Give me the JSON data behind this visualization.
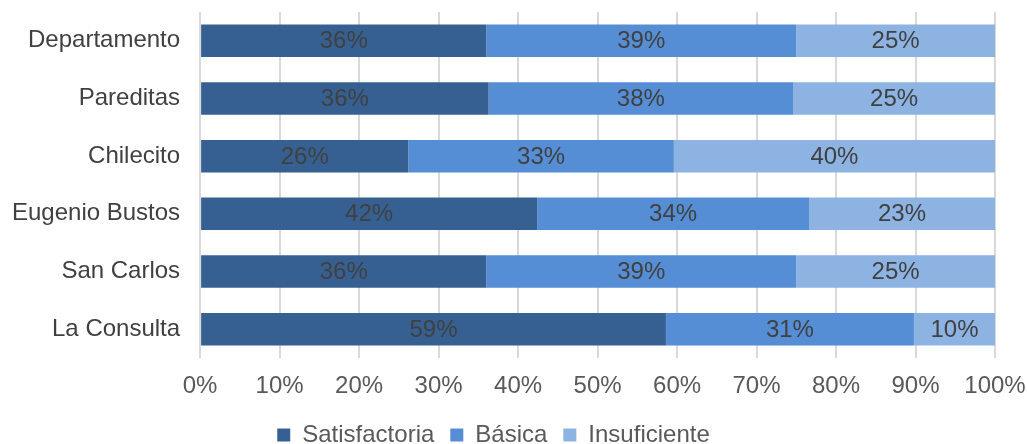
{
  "chart_data": {
    "type": "bar",
    "orientation": "horizontal",
    "stacked": true,
    "categories": [
      "Departamento",
      "Pareditas",
      "Chilecito",
      "Eugenio Bustos",
      "San Carlos",
      "La Consulta"
    ],
    "series": [
      {
        "name": "Satisfactoria",
        "color": "#366092",
        "values": [
          36,
          36.3,
          26.2,
          42.4,
          36,
          58.6
        ],
        "value_labels": [
          "36%",
          "36%",
          "26%",
          "42%",
          "36%",
          "59%"
        ]
      },
      {
        "name": "Básica",
        "color": "#558ed5",
        "values": [
          39,
          38.3,
          33.4,
          34.2,
          39,
          31.2
        ],
        "value_labels": [
          "39%",
          "38%",
          "33%",
          "34%",
          "39%",
          "31%"
        ]
      },
      {
        "name": "Insuficiente",
        "color": "#8db3e2",
        "values": [
          25,
          25.4,
          40.4,
          23.4,
          25,
          10.2
        ],
        "value_labels": [
          "25%",
          "25%",
          "40%",
          "23%",
          "25%",
          "10%"
        ]
      }
    ],
    "xlim": [
      0,
      100
    ],
    "xticks": [
      {
        "value": 0,
        "label": "0%"
      },
      {
        "value": 10,
        "label": "10%"
      },
      {
        "value": 20,
        "label": "20%"
      },
      {
        "value": 30,
        "label": "30%"
      },
      {
        "value": 40,
        "label": "40%"
      },
      {
        "value": 50,
        "label": "50%"
      },
      {
        "value": 60,
        "label": "60%"
      },
      {
        "value": 70,
        "label": "70%"
      },
      {
        "value": 80,
        "label": "80%"
      },
      {
        "value": 90,
        "label": "90%"
      },
      {
        "value": 100,
        "label": "100%"
      }
    ],
    "grid": "x",
    "legend": "bottom"
  }
}
